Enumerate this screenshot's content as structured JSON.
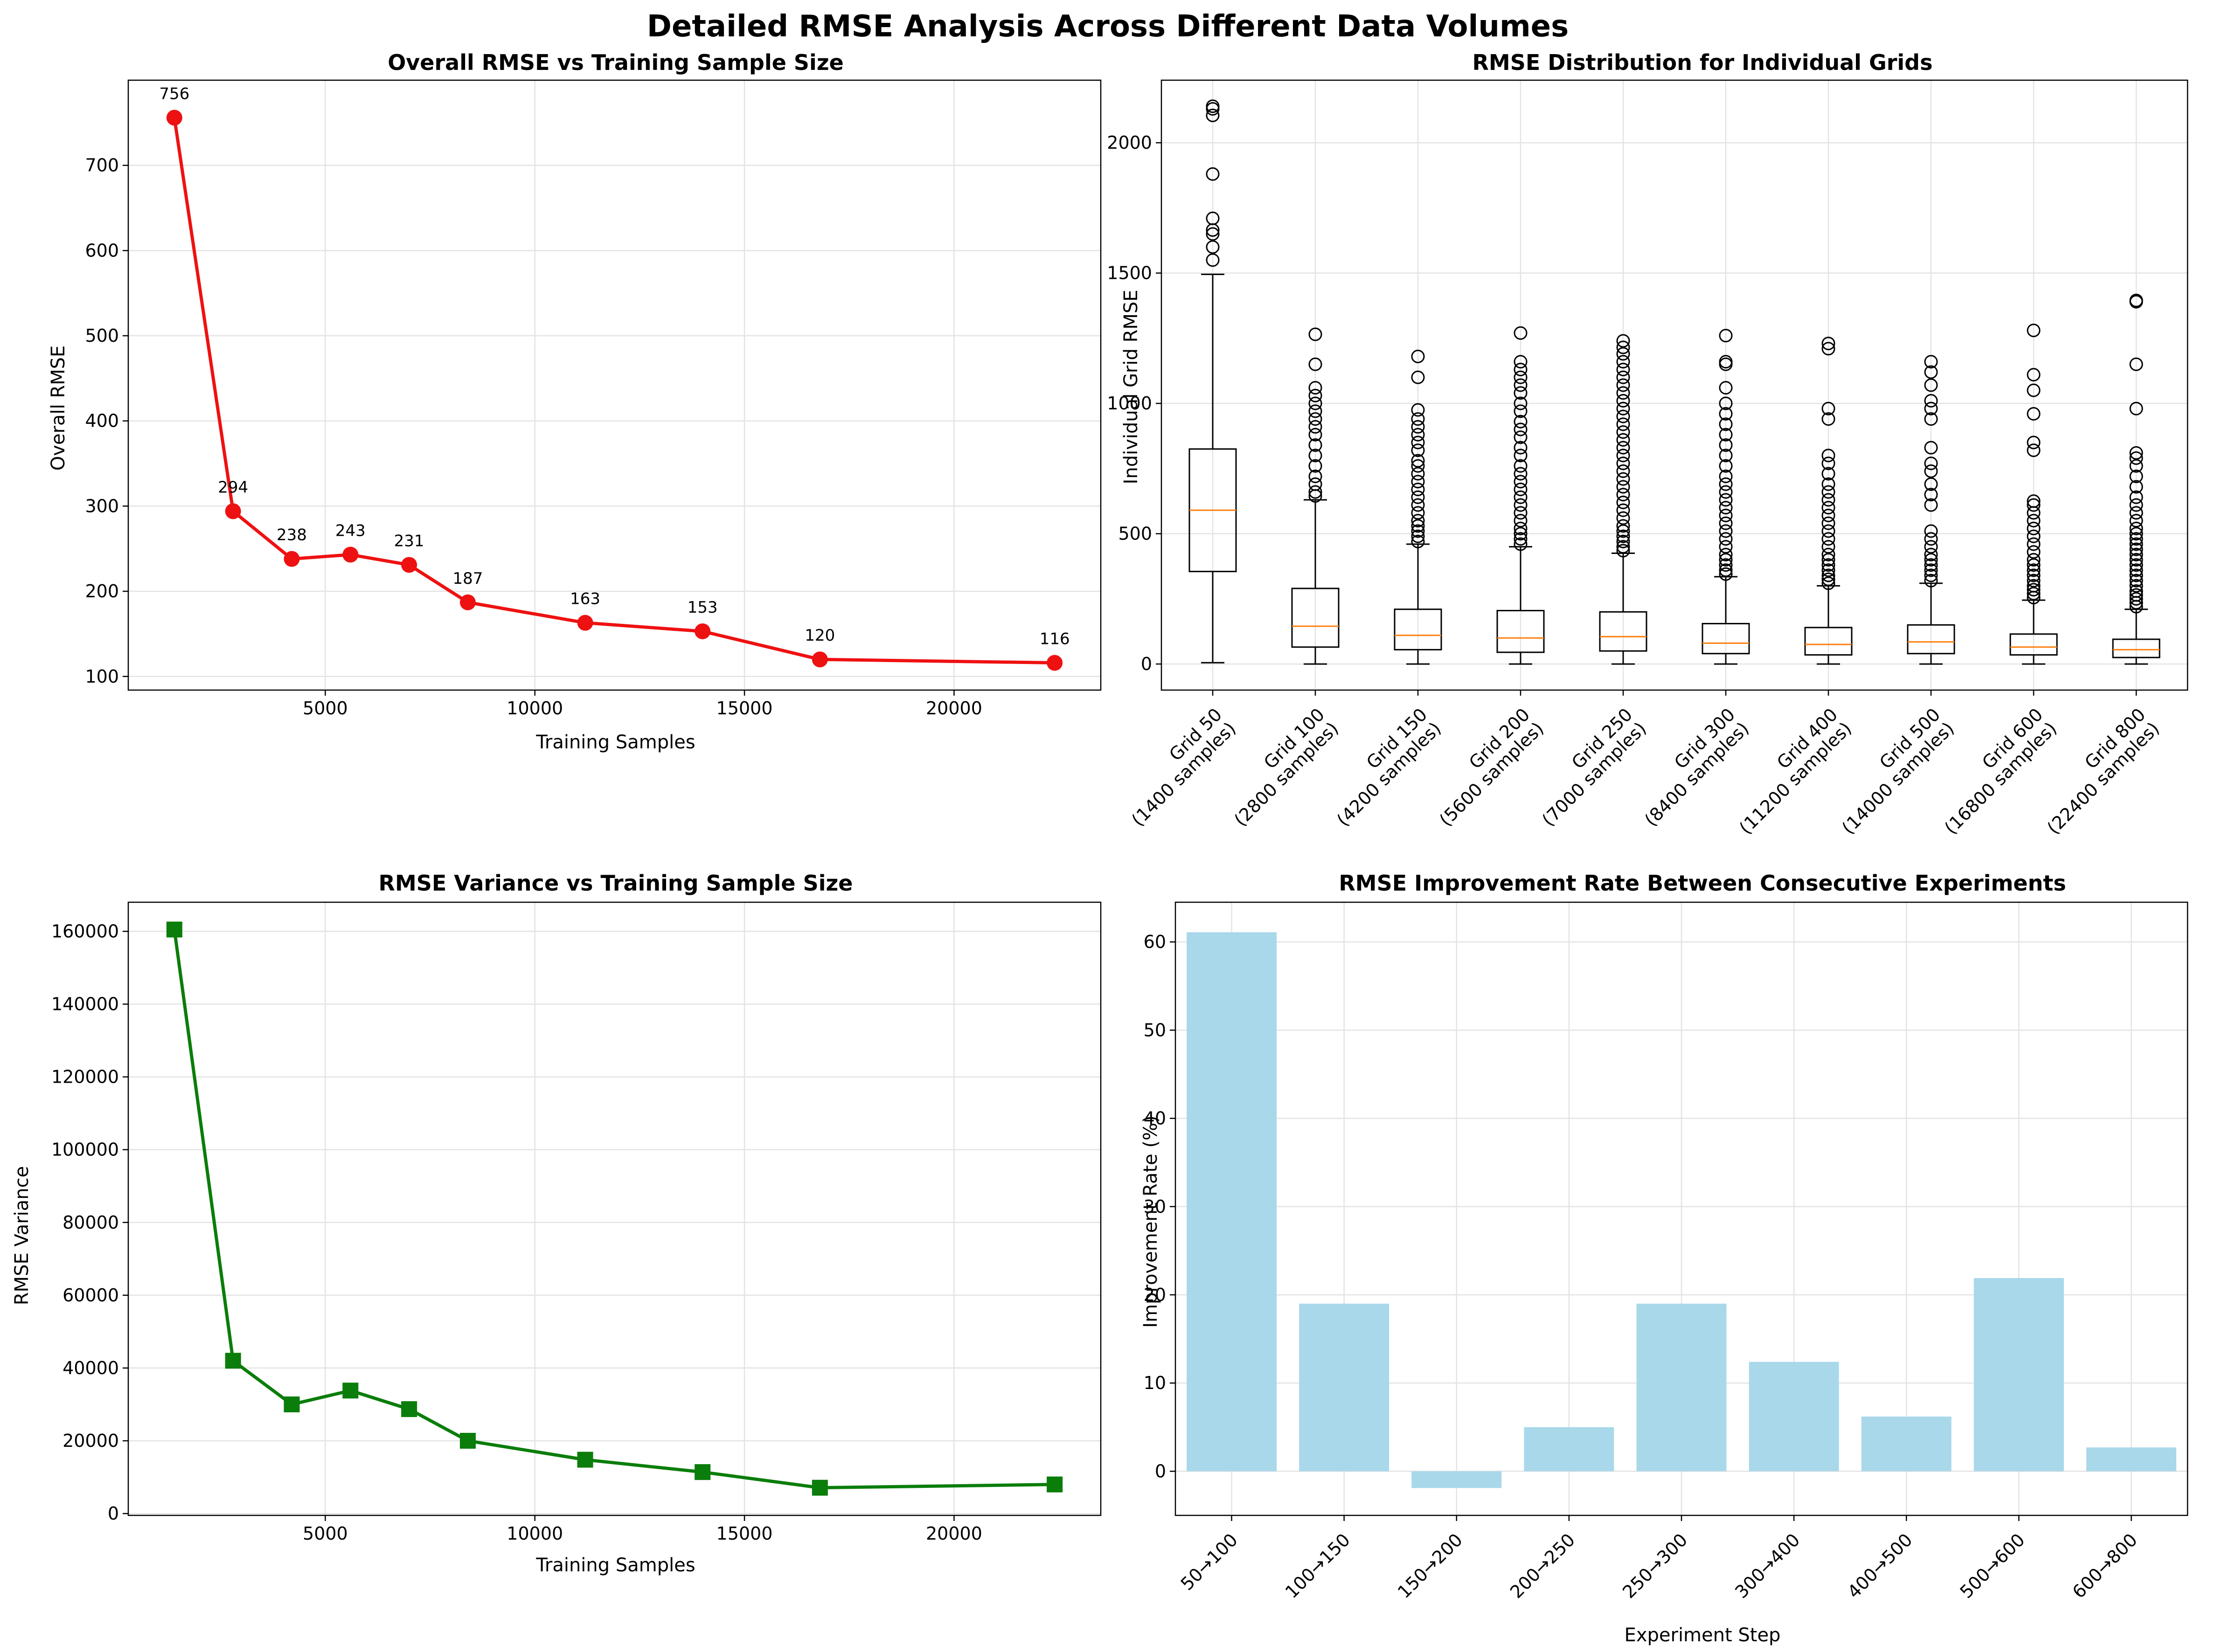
{
  "figure_title": "Detailed RMSE Analysis Across Different Data Volumes",
  "colors": {
    "line1": "#ee1111",
    "line3": "#0a7d0a",
    "bars": "#a8d8ea",
    "median": "#ff7f0e",
    "box": "#000000"
  },
  "chart_data": [
    {
      "type": "line",
      "title": "Overall RMSE vs Training Sample Size",
      "xlabel": "Training Samples",
      "ylabel": "Overall RMSE",
      "x": [
        1400,
        2800,
        4200,
        5600,
        7000,
        8400,
        11200,
        14000,
        16800,
        22400
      ],
      "y": [
        756,
        294,
        238,
        243,
        231,
        187,
        163,
        153,
        120,
        116
      ],
      "point_labels": [
        "756",
        "294",
        "238",
        "243",
        "231",
        "187",
        "163",
        "153",
        "120",
        "116"
      ],
      "xlim": [
        300,
        23500
      ],
      "ylim": [
        84,
        800
      ],
      "xticks": [
        5000,
        10000,
        15000,
        20000
      ],
      "xtick_labels": [
        "5000",
        "10000",
        "15000",
        "20000"
      ],
      "yticks": [
        100,
        200,
        300,
        400,
        500,
        600,
        700
      ],
      "ytick_labels": [
        "100",
        "200",
        "300",
        "400",
        "500",
        "600",
        "700"
      ],
      "marker": "circle",
      "grid": true
    },
    {
      "type": "box",
      "title": "RMSE Distribution for Individual Grids",
      "ylabel": "Individual Grid RMSE",
      "ylim": [
        -100,
        2240
      ],
      "yticks": [
        0,
        500,
        1000,
        1500,
        2000
      ],
      "ytick_labels": [
        "0",
        "500",
        "1000",
        "1500",
        "2000"
      ],
      "categories": [
        [
          "Grid 50",
          "(1400 samples)"
        ],
        [
          "Grid 100",
          "(2800 samples)"
        ],
        [
          "Grid 150",
          "(4200 samples)"
        ],
        [
          "Grid 200",
          "(5600 samples)"
        ],
        [
          "Grid 250",
          "(7000 samples)"
        ],
        [
          "Grid 300",
          "(8400 samples)"
        ],
        [
          "Grid 400",
          "(11200 samples)"
        ],
        [
          "Grid 500",
          "(14000 samples)"
        ],
        [
          "Grid 600",
          "(16800 samples)"
        ],
        [
          "Grid 800",
          "(22400 samples)"
        ]
      ],
      "boxes": [
        {
          "min": 5,
          "q1": 355,
          "median": 590,
          "q3": 825,
          "whisker_high": 1495,
          "outliers": [
            1550,
            1600,
            1650,
            1665,
            1710,
            1880,
            2105,
            2130,
            2140
          ]
        },
        {
          "min": 0,
          "q1": 65,
          "median": 145,
          "q3": 290,
          "whisker_high": 630,
          "outliers": [
            645,
            660,
            690,
            720,
            760,
            800,
            840,
            880,
            910,
            940,
            970,
            1000,
            1030,
            1060,
            1150,
            1265
          ]
        },
        {
          "min": 0,
          "q1": 55,
          "median": 110,
          "q3": 210,
          "whisker_high": 460,
          "outliers": [
            470,
            490,
            510,
            530,
            550,
            580,
            610,
            640,
            670,
            700,
            730,
            760,
            780,
            820,
            850,
            880,
            910,
            940,
            975,
            1100,
            1180
          ]
        },
        {
          "min": 0,
          "q1": 45,
          "median": 100,
          "q3": 205,
          "whisker_high": 450,
          "outliers": [
            460,
            480,
            500,
            520,
            550,
            580,
            610,
            640,
            670,
            700,
            730,
            760,
            800,
            830,
            870,
            900,
            930,
            970,
            1000,
            1040,
            1070,
            1100,
            1130,
            1160,
            1270
          ]
        },
        {
          "min": 0,
          "q1": 50,
          "median": 105,
          "q3": 200,
          "whisker_high": 425,
          "outliers": [
            435,
            450,
            470,
            490,
            510,
            530,
            560,
            590,
            620,
            650,
            680,
            710,
            740,
            770,
            800,
            830,
            860,
            890,
            920,
            950,
            980,
            1010,
            1040,
            1070,
            1100,
            1130,
            1160,
            1190,
            1215,
            1240
          ]
        },
        {
          "min": 0,
          "q1": 40,
          "median": 80,
          "q3": 155,
          "whisker_high": 335,
          "outliers": [
            345,
            360,
            380,
            400,
            420,
            450,
            480,
            510,
            540,
            570,
            600,
            630,
            660,
            690,
            720,
            760,
            800,
            840,
            880,
            920,
            960,
            1000,
            1060,
            1150,
            1160,
            1260
          ]
        },
        {
          "min": 0,
          "q1": 35,
          "median": 75,
          "q3": 140,
          "whisker_high": 300,
          "outliers": [
            310,
            325,
            340,
            360,
            380,
            400,
            420,
            450,
            480,
            510,
            540,
            570,
            600,
            630,
            660,
            690,
            730,
            770,
            800,
            940,
            980,
            1210,
            1230
          ]
        },
        {
          "min": 0,
          "q1": 40,
          "median": 85,
          "q3": 150,
          "whisker_high": 310,
          "outliers": [
            320,
            340,
            360,
            380,
            400,
            420,
            450,
            480,
            510,
            610,
            650,
            690,
            740,
            770,
            830,
            940,
            980,
            1010,
            1070,
            1120,
            1160
          ]
        },
        {
          "min": 0,
          "q1": 35,
          "median": 65,
          "q3": 115,
          "whisker_high": 245,
          "outliers": [
            255,
            270,
            285,
            300,
            320,
            340,
            360,
            380,
            400,
            430,
            460,
            490,
            520,
            550,
            580,
            610,
            625,
            820,
            850,
            960,
            1050,
            1110,
            1280
          ]
        },
        {
          "min": 0,
          "q1": 25,
          "median": 55,
          "q3": 95,
          "whisker_high": 210,
          "outliers": [
            220,
            235,
            250,
            265,
            280,
            300,
            320,
            340,
            360,
            380,
            400,
            420,
            440,
            460,
            480,
            500,
            520,
            550,
            580,
            610,
            640,
            680,
            720,
            760,
            790,
            810,
            980,
            1150,
            1390,
            1395
          ]
        }
      ],
      "grid": true
    },
    {
      "type": "line",
      "title": "RMSE Variance vs Training Sample Size",
      "xlabel": "Training Samples",
      "ylabel": "RMSE Variance",
      "x": [
        1400,
        2800,
        4200,
        5600,
        7000,
        8400,
        11200,
        14000,
        16800,
        22400
      ],
      "y": [
        160500,
        42000,
        30000,
        33800,
        28700,
        20000,
        14800,
        11400,
        7100,
        8000
      ],
      "xlim": [
        300,
        23500
      ],
      "ylim": [
        -500,
        168000
      ],
      "xticks": [
        5000,
        10000,
        15000,
        20000
      ],
      "xtick_labels": [
        "5000",
        "10000",
        "15000",
        "20000"
      ],
      "yticks": [
        0,
        20000,
        40000,
        60000,
        80000,
        100000,
        120000,
        140000,
        160000
      ],
      "ytick_labels": [
        "0",
        "20000",
        "40000",
        "60000",
        "80000",
        "100000",
        "120000",
        "140000",
        "160000"
      ],
      "marker": "square",
      "grid": true
    },
    {
      "type": "bar",
      "title": "RMSE Improvement Rate Between Consecutive Experiments",
      "xlabel": "Experiment Step",
      "ylabel": "Improvement Rate (%)",
      "categories": [
        "50→100",
        "100→150",
        "150→200",
        "200→250",
        "250→300",
        "300→400",
        "400→500",
        "500→600",
        "600→800"
      ],
      "values": [
        61.1,
        19.0,
        -1.9,
        5.0,
        19.0,
        12.4,
        6.2,
        21.9,
        2.7
      ],
      "ylim": [
        -5,
        64.5
      ],
      "yticks": [
        0,
        10,
        20,
        30,
        40,
        50,
        60
      ],
      "ytick_labels": [
        "0",
        "10",
        "20",
        "30",
        "40",
        "50",
        "60"
      ],
      "grid": true
    }
  ]
}
